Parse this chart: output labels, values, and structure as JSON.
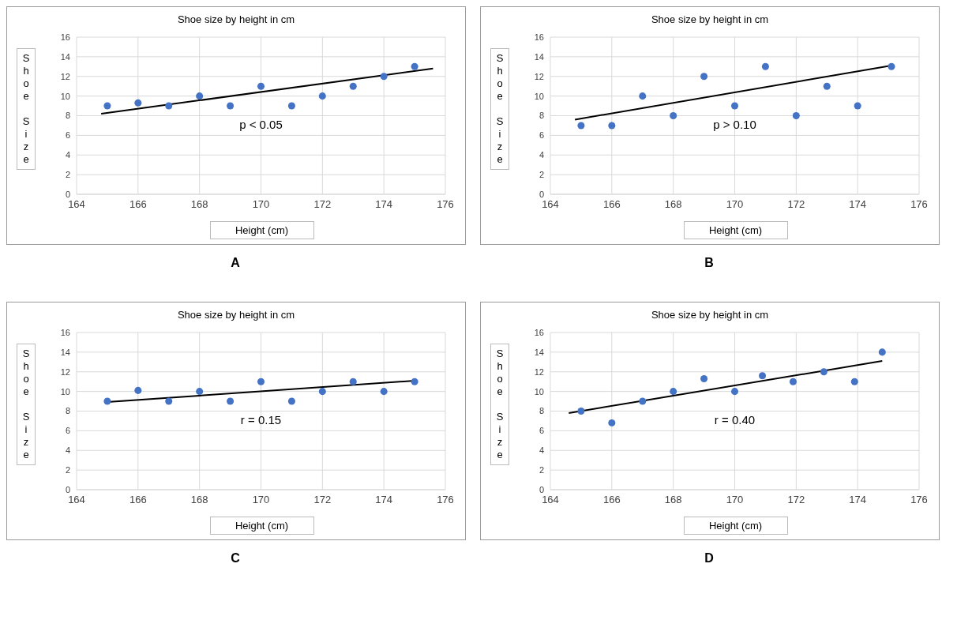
{
  "chart_data": [
    {
      "type": "scatter",
      "title": "Shoe size by height in cm",
      "xlabel": "Height (cm)",
      "ylabel": "Shoe Size",
      "xlim": [
        164,
        176
      ],
      "xticks": [
        164,
        166,
        168,
        170,
        172,
        174,
        176
      ],
      "ylim": [
        0,
        16
      ],
      "yticks": [
        0,
        2,
        4,
        6,
        8,
        10,
        12,
        14,
        16
      ],
      "grid": true,
      "marker": "circle",
      "annotations": [
        "p < 0.05",
        "A"
      ],
      "series": [
        {
          "color": "#4472c4",
          "x": [
            165,
            166,
            167,
            168,
            169,
            170,
            171,
            172,
            173,
            174,
            175
          ],
          "values": [
            9,
            9.3,
            9,
            10,
            9,
            11,
            9,
            10,
            11,
            12,
            13
          ]
        },
        {
          "type": "line",
          "marker": "none",
          "color": "#000000",
          "line_style": "solid",
          "x": [
            164.8,
            175.6
          ],
          "values": [
            8.2,
            12.8
          ]
        }
      ]
    },
    {
      "type": "scatter",
      "title": "Shoe size by height in cm",
      "xlabel": "Height (cm)",
      "ylabel": "Shoe Size",
      "xlim": [
        164,
        176
      ],
      "xticks": [
        164,
        166,
        168,
        170,
        172,
        174,
        176
      ],
      "ylim": [
        0,
        16
      ],
      "yticks": [
        0,
        2,
        4,
        6,
        8,
        10,
        12,
        14,
        16
      ],
      "grid": true,
      "marker": "circle",
      "annotations": [
        "p > 0.10",
        "B"
      ],
      "series": [
        {
          "color": "#4472c4",
          "x": [
            165,
            166,
            167,
            168,
            169,
            170,
            171,
            172,
            173,
            174,
            175.1
          ],
          "values": [
            7,
            7,
            10,
            8,
            12,
            9,
            13,
            8,
            11,
            9,
            13
          ]
        },
        {
          "type": "line",
          "marker": "none",
          "color": "#000000",
          "line_style": "solid",
          "x": [
            164.8,
            175.1
          ],
          "values": [
            7.6,
            13.1
          ]
        }
      ]
    },
    {
      "type": "scatter",
      "title": "Shoe size by height in cm",
      "xlabel": "Height (cm)",
      "ylabel": "Shoe Size",
      "xlim": [
        164,
        176
      ],
      "xticks": [
        164,
        166,
        168,
        170,
        172,
        174,
        176
      ],
      "ylim": [
        0,
        16
      ],
      "yticks": [
        0,
        2,
        4,
        6,
        8,
        10,
        12,
        14,
        16
      ],
      "grid": true,
      "marker": "circle",
      "annotations": [
        "r = 0.15",
        "C"
      ],
      "series": [
        {
          "color": "#4472c4",
          "x": [
            165,
            166,
            167,
            168,
            169,
            170,
            171,
            172,
            173,
            174,
            175
          ],
          "values": [
            9,
            10.1,
            9,
            10,
            9,
            11,
            9,
            10,
            11,
            10,
            11
          ]
        },
        {
          "type": "line",
          "marker": "none",
          "color": "#000000",
          "line_style": "solid",
          "x": [
            164.9,
            175
          ],
          "values": [
            8.9,
            11.1
          ]
        }
      ]
    },
    {
      "type": "scatter",
      "title": "Shoe size by height in cm",
      "xlabel": "Height (cm)",
      "ylabel": "Shoe Size",
      "xlim": [
        164,
        176
      ],
      "xticks": [
        164,
        166,
        168,
        170,
        172,
        174,
        176
      ],
      "ylim": [
        0,
        16
      ],
      "yticks": [
        0,
        2,
        4,
        6,
        8,
        10,
        12,
        14,
        16
      ],
      "grid": true,
      "marker": "circle",
      "annotations": [
        "r = 0.40",
        "D"
      ],
      "series": [
        {
          "color": "#4472c4",
          "x": [
            165,
            166,
            167,
            168,
            169,
            170,
            170.9,
            171.9,
            172.9,
            173.9,
            174.8
          ],
          "values": [
            8,
            6.8,
            9,
            10,
            11.3,
            10,
            11.6,
            11,
            12,
            11,
            14
          ]
        },
        {
          "type": "line",
          "marker": "none",
          "color": "#000000",
          "line_style": "solid",
          "x": [
            164.6,
            174.8
          ],
          "values": [
            7.8,
            13.1
          ]
        }
      ]
    }
  ]
}
